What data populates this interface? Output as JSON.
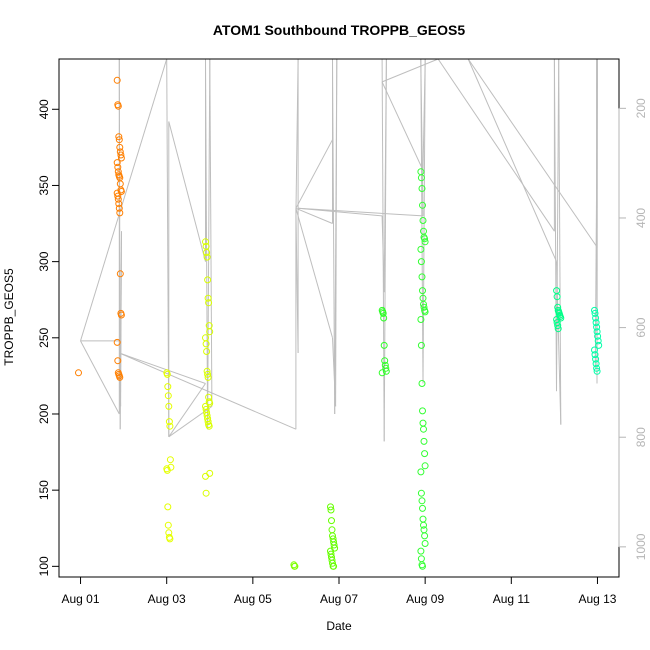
{
  "chart_data": {
    "type": "scatter",
    "title": "ATOM1 Southbound TROPPB_GEOS5",
    "xlabel": "Date",
    "ylabel": "TROPPB_GEOS5",
    "x_ticks": [
      "Aug 01",
      "Aug 03",
      "Aug 05",
      "Aug 07",
      "Aug 09",
      "Aug 11",
      "Aug 13"
    ],
    "y_ticks": [
      100,
      150,
      200,
      250,
      300,
      350,
      400
    ],
    "right_axis_ticks": [
      200,
      400,
      600,
      800,
      1000
    ],
    "xlim_days": [
      0.5,
      13.5
    ],
    "ylim": [
      93,
      433
    ],
    "right_ylim": [
      1055,
      110
    ],
    "grid": false,
    "colors": {
      "aug01": "#FF7F00",
      "aug02": "#FF7F00",
      "aug03": "#E5FF00",
      "aug04": "#D9FF00",
      "aug06": "#7FFF00",
      "aug07": "#66FF00",
      "aug08": "#2EFF26",
      "aug09": "#33FF33",
      "aug12": "#00FF88",
      "aug13": "#00FFA8",
      "line": "#BEBEBE",
      "right_axis": "#B5B5B5"
    },
    "series": [
      {
        "day": 1.0,
        "color_key": "aug01",
        "values": [
          227
        ]
      },
      {
        "day": 1.9,
        "color_key": "aug02",
        "values": [
          419,
          403,
          402,
          382,
          380,
          375,
          372,
          370,
          368,
          365,
          362,
          359,
          357,
          356,
          355,
          351,
          347,
          346,
          345,
          343,
          341,
          338,
          335,
          332,
          292,
          266,
          265,
          247,
          235,
          227,
          226,
          225,
          224
        ]
      },
      {
        "day": 3.05,
        "color_key": "aug03",
        "values": [
          227,
          226,
          218,
          212,
          205,
          195,
          192,
          170,
          165,
          164,
          163,
          139,
          127,
          122,
          119,
          118
        ]
      },
      {
        "day": 3.95,
        "color_key": "aug04",
        "values": [
          313,
          310,
          306,
          303,
          288,
          276,
          273,
          258,
          254,
          250,
          246,
          241,
          228,
          226,
          224,
          211,
          208,
          207,
          205,
          203,
          201,
          199,
          197,
          195,
          193,
          192,
          161,
          159,
          148
        ]
      },
      {
        "day": 6.0,
        "color_key": "aug06",
        "values": [
          101,
          100,
          100
        ]
      },
      {
        "day": 6.85,
        "color_key": "aug07",
        "values": [
          139,
          137,
          130,
          124,
          120,
          118,
          116,
          114,
          112,
          110,
          108,
          106,
          104,
          102,
          100,
          100
        ]
      },
      {
        "day": 8.05,
        "color_key": "aug08",
        "values": [
          268,
          267,
          266,
          263,
          245,
          235,
          232,
          230,
          228,
          227
        ]
      },
      {
        "day": 8.95,
        "color_key": "aug09",
        "values": [
          359,
          355,
          348,
          337,
          327,
          320,
          316,
          315,
          313,
          308,
          300,
          290,
          281,
          276,
          272,
          270,
          268,
          267,
          262,
          245,
          220,
          202,
          194,
          190,
          182,
          174,
          166,
          162,
          148,
          143,
          138,
          131,
          127,
          124,
          120,
          115,
          110,
          105,
          101,
          100
        ]
      },
      {
        "day": 12.1,
        "color_key": "aug12",
        "values": [
          281,
          277,
          270,
          268,
          267,
          266,
          265,
          264,
          263,
          262,
          260,
          258,
          256
        ]
      },
      {
        "day": 12.98,
        "color_key": "aug13",
        "values": [
          268,
          266,
          263,
          260,
          257,
          254,
          251,
          248,
          245,
          242,
          239,
          236,
          233,
          230,
          228
        ]
      }
    ]
  }
}
